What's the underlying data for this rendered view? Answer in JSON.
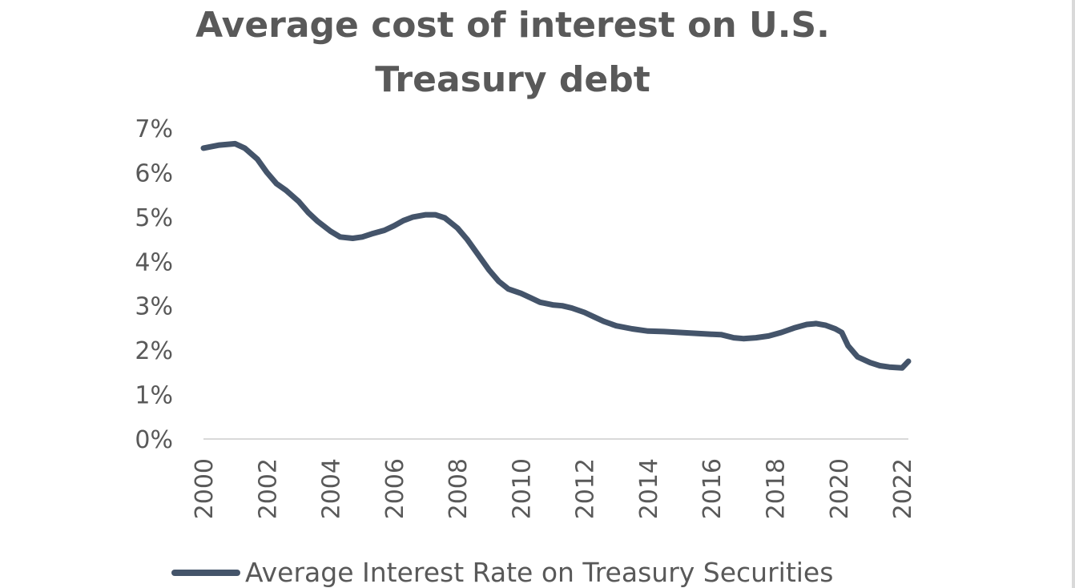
{
  "chart_data": {
    "type": "line",
    "title": "Average cost of interest on U.S. Treasury debt",
    "title_lines": [
      "Average cost of interest on U.S.",
      "Treasury debt"
    ],
    "ylim": [
      0,
      0.07
    ],
    "yticks": [
      0,
      0.01,
      0.02,
      0.03,
      0.04,
      0.05,
      0.06,
      0.07
    ],
    "ytick_labels": [
      "0%",
      "1%",
      "2%",
      "3%",
      "4%",
      "5%",
      "6%",
      "7%"
    ],
    "xlim": [
      2000,
      2022.2
    ],
    "xticks": [
      2000,
      2002,
      2004,
      2006,
      2008,
      2010,
      2012,
      2014,
      2016,
      2018,
      2020,
      2022
    ],
    "xtick_labels": [
      "2000",
      "2002",
      "2004",
      "2006",
      "2008",
      "2010",
      "2012",
      "2014",
      "2016",
      "2018",
      "2020",
      "2022"
    ],
    "grid": false,
    "legend_position": "bottom",
    "series": [
      {
        "name": "Average Interest Rate on Treasury Securities",
        "color": "#44546a",
        "x": [
          2000,
          2000.5,
          2001,
          2001.3,
          2001.7,
          2002,
          2002.3,
          2002.6,
          2003,
          2003.3,
          2003.6,
          2004,
          2004.3,
          2004.7,
          2005,
          2005.3,
          2005.7,
          2006,
          2006.3,
          2006.6,
          2007,
          2007.3,
          2007.6,
          2008,
          2008.3,
          2008.6,
          2009,
          2009.3,
          2009.6,
          2010,
          2010.3,
          2010.6,
          2011,
          2011.3,
          2011.6,
          2012,
          2012.3,
          2012.6,
          2013,
          2013.5,
          2014,
          2014.5,
          2015,
          2015.5,
          2016,
          2016.3,
          2016.7,
          2017,
          2017.4,
          2017.8,
          2018.2,
          2018.6,
          2019,
          2019.3,
          2019.6,
          2019.9,
          2020.1,
          2020.3,
          2020.6,
          2021,
          2021.3,
          2021.6,
          2022,
          2022.2
        ],
        "values": [
          0.0655,
          0.0662,
          0.0665,
          0.0655,
          0.063,
          0.06,
          0.0575,
          0.056,
          0.0535,
          0.051,
          0.049,
          0.0468,
          0.0455,
          0.0452,
          0.0455,
          0.0462,
          0.047,
          0.048,
          0.0492,
          0.05,
          0.0505,
          0.0505,
          0.0498,
          0.0475,
          0.045,
          0.042,
          0.038,
          0.0355,
          0.0338,
          0.0328,
          0.0318,
          0.0308,
          0.0302,
          0.03,
          0.0295,
          0.0285,
          0.0275,
          0.0265,
          0.0255,
          0.0248,
          0.0243,
          0.0242,
          0.024,
          0.0238,
          0.0236,
          0.0235,
          0.0228,
          0.0226,
          0.0228,
          0.0232,
          0.024,
          0.025,
          0.0258,
          0.026,
          0.0256,
          0.0248,
          0.024,
          0.021,
          0.0185,
          0.0172,
          0.0165,
          0.0162,
          0.016,
          0.0175
        ]
      }
    ]
  }
}
